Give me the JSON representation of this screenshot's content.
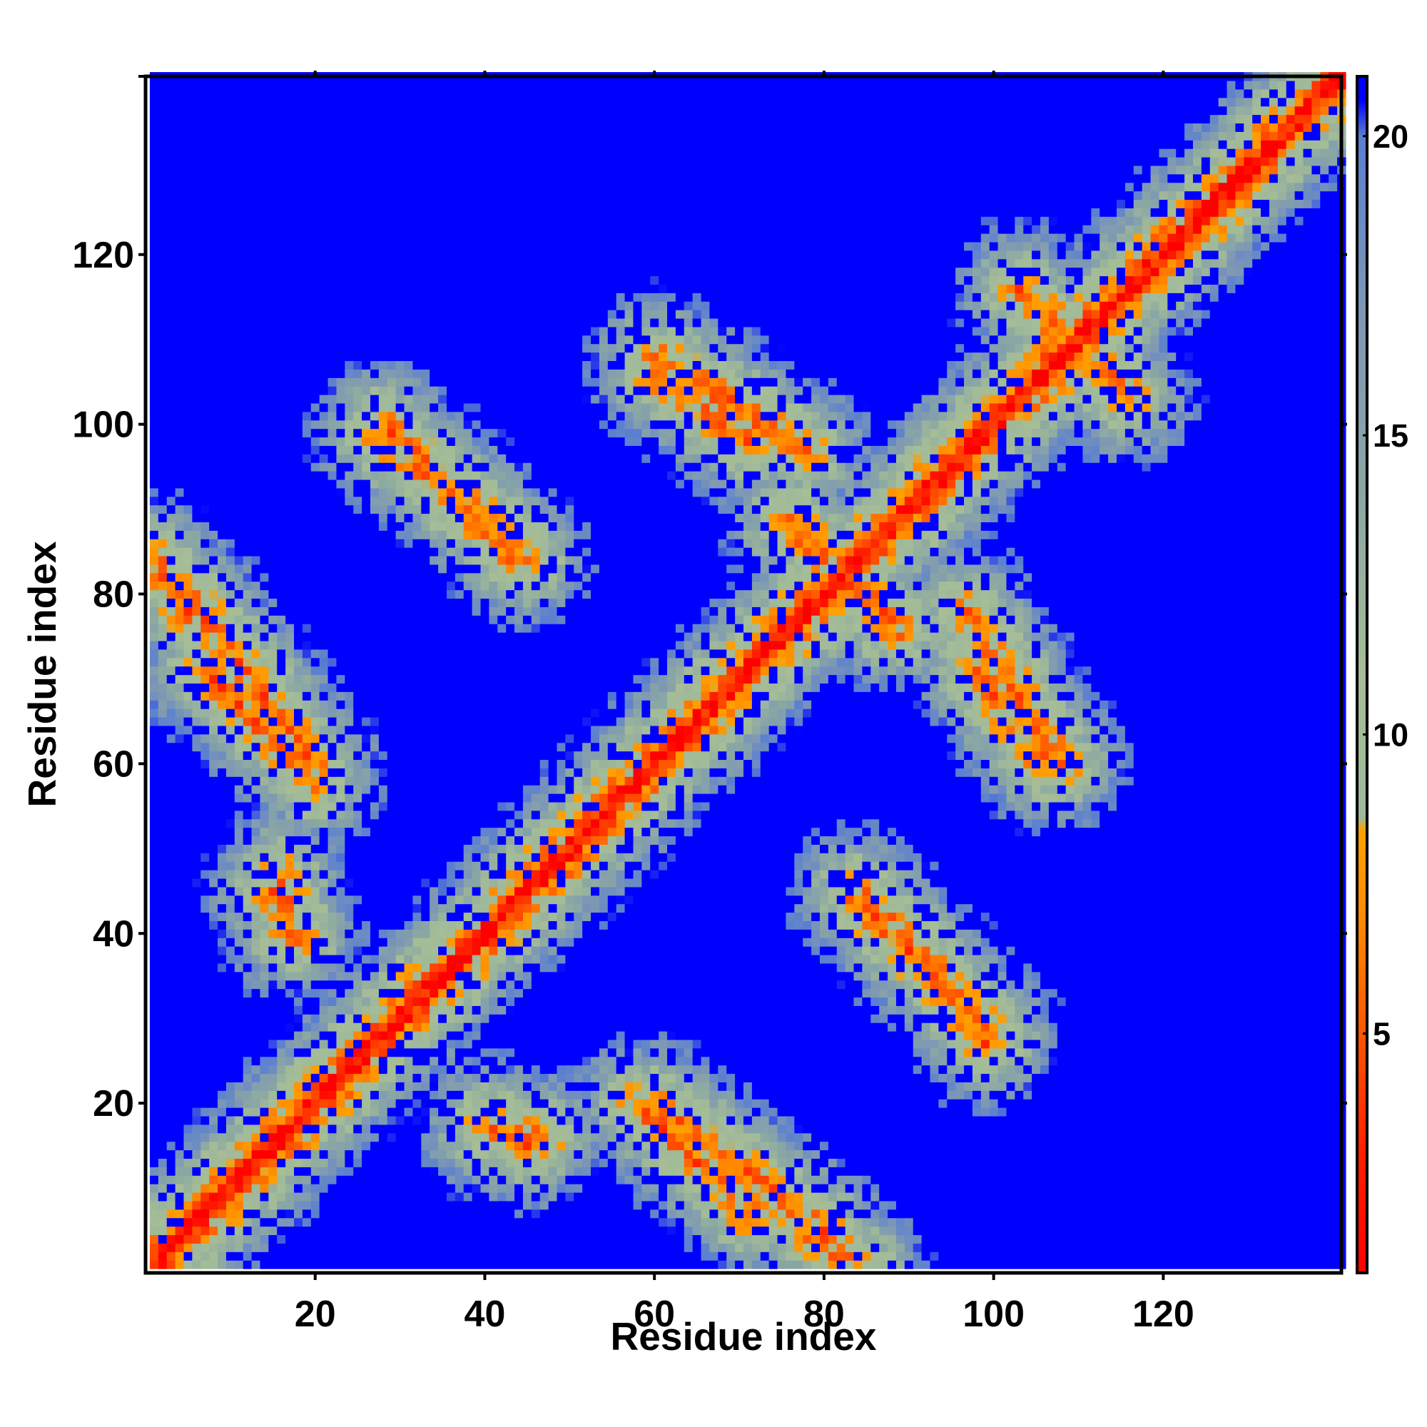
{
  "chart_data": {
    "type": "heatmap",
    "title": "",
    "xlabel": "Residue index",
    "ylabel": "Residue index",
    "xlim": [
      1,
      141
    ],
    "ylim": [
      1,
      141
    ],
    "x_ticks": [
      20,
      40,
      60,
      80,
      100,
      120
    ],
    "y_ticks": [
      20,
      40,
      60,
      80,
      100,
      120
    ],
    "grid": false,
    "n_residues": 141,
    "colorbar": {
      "range": [
        1,
        21
      ],
      "ticks": [
        5,
        10,
        15,
        20
      ],
      "stops": [
        {
          "value": 1,
          "color": "#ff0000"
        },
        {
          "value": 3,
          "color": "#ff2000"
        },
        {
          "value": 5,
          "color": "#ff5500"
        },
        {
          "value": 7,
          "color": "#ff8c00"
        },
        {
          "value": 8.4,
          "color": "#ffa000"
        },
        {
          "value": 8.6,
          "color": "#9fb99a"
        },
        {
          "value": 11,
          "color": "#a6bd96"
        },
        {
          "value": 14,
          "color": "#8aa7a4"
        },
        {
          "value": 17,
          "color": "#7e98b4"
        },
        {
          "value": 20,
          "color": "#5a7fd0"
        },
        {
          "value": 20.6,
          "color": "#0000ff"
        },
        {
          "value": 21,
          "color": "#0000ff"
        }
      ]
    },
    "contact_bands": [
      {
        "name": "diagonal",
        "from": [
          1,
          1
        ],
        "to": [
          141,
          141
        ]
      },
      {
        "from": [
          5,
          80
        ],
        "to": [
          20,
          60
        ]
      },
      {
        "from": [
          28,
          100
        ],
        "to": [
          45,
          84
        ]
      },
      {
        "from": [
          15,
          45
        ],
        "to": [
          18,
          40
        ]
      },
      {
        "from": [
          40,
          17
        ],
        "to": [
          47,
          16
        ]
      },
      {
        "from": [
          58,
          20
        ],
        "to": [
          71,
          7
        ]
      },
      {
        "from": [
          78,
          5
        ],
        "to": [
          84,
          1
        ]
      },
      {
        "from": [
          60,
          106
        ],
        "to": [
          71,
          98
        ]
      },
      {
        "from": [
          76,
          89
        ],
        "to": [
          88,
          76
        ]
      },
      {
        "from": [
          97,
          78
        ],
        "to": [
          108,
          60
        ]
      },
      {
        "from": [
          84,
          44
        ],
        "to": [
          92,
          36
        ]
      },
      {
        "from": [
          94,
          34
        ],
        "to": [
          99,
          27
        ]
      },
      {
        "from": [
          103,
          116
        ],
        "to": [
          116,
          103
        ]
      }
    ],
    "max_distance": 21
  }
}
